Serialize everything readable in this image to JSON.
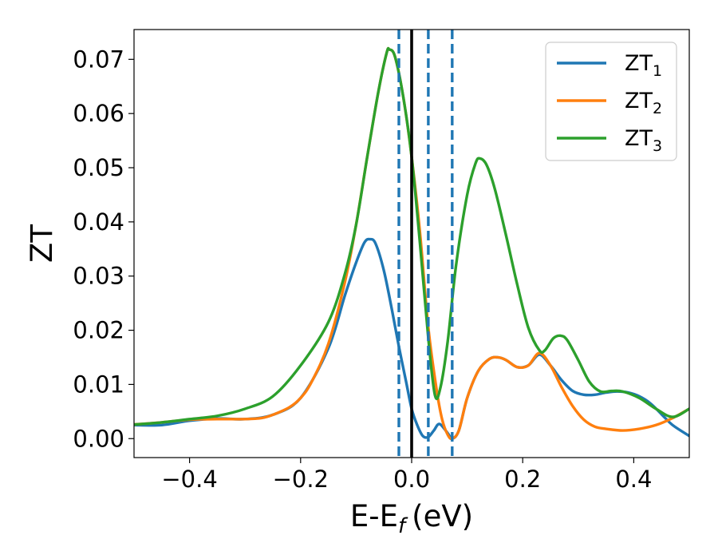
{
  "chart_data": {
    "type": "line",
    "xlabel": "E-E",
    "xlabel_sub": "f",
    "xlabel_unit": "(eV)",
    "ylabel": "ZT",
    "xlim": [
      -0.5,
      0.5
    ],
    "ylim": [
      -0.0035,
      0.0755
    ],
    "xticks": [
      -0.4,
      -0.2,
      0.0,
      0.2,
      0.4
    ],
    "xtick_labels": [
      "−0.4",
      "−0.2",
      "0.0",
      "0.2",
      "0.4"
    ],
    "yticks": [
      0.0,
      0.01,
      0.02,
      0.03,
      0.04,
      0.05,
      0.06,
      0.07
    ],
    "ytick_labels": [
      "0.00",
      "0.01",
      "0.02",
      "0.03",
      "0.04",
      "0.05",
      "0.06",
      "0.07"
    ],
    "grid": false,
    "legend_position": "top-right",
    "vertical_lines": [
      {
        "x": 0.0,
        "style": "solid",
        "color": "#000000"
      },
      {
        "x": -0.023,
        "style": "dashed",
        "color": "#1f77b4"
      },
      {
        "x": 0.03,
        "style": "dashed",
        "color": "#1f77b4"
      },
      {
        "x": 0.073,
        "style": "dashed",
        "color": "#1f77b4"
      }
    ],
    "series": [
      {
        "name": "ZT",
        "name_sub": "1",
        "color": "#1f77b4",
        "points": [
          [
            -0.5,
            0.0025
          ],
          [
            -0.45,
            0.0025
          ],
          [
            -0.4,
            0.0033
          ],
          [
            -0.35,
            0.0037
          ],
          [
            -0.3,
            0.0036
          ],
          [
            -0.25,
            0.0044
          ],
          [
            -0.2,
            0.0075
          ],
          [
            -0.15,
            0.0167
          ],
          [
            -0.12,
            0.0265
          ],
          [
            -0.1,
            0.0325
          ],
          [
            -0.085,
            0.0362
          ],
          [
            -0.075,
            0.0368
          ],
          [
            -0.065,
            0.036
          ],
          [
            -0.05,
            0.031
          ],
          [
            -0.035,
            0.0235
          ],
          [
            -0.023,
            0.017
          ],
          [
            -0.01,
            0.0105
          ],
          [
            0.0,
            0.0055
          ],
          [
            0.01,
            0.0025
          ],
          [
            0.02,
            0.0005
          ],
          [
            0.03,
            0.0003
          ],
          [
            0.04,
            0.0015
          ],
          [
            0.05,
            0.0027
          ],
          [
            0.065,
            0.001
          ],
          [
            0.073,
            0.0
          ],
          [
            0.085,
            0.0015
          ],
          [
            0.1,
            0.0075
          ],
          [
            0.12,
            0.0125
          ],
          [
            0.14,
            0.0147
          ],
          [
            0.155,
            0.015
          ],
          [
            0.17,
            0.0145
          ],
          [
            0.19,
            0.0132
          ],
          [
            0.21,
            0.0135
          ],
          [
            0.23,
            0.0155
          ],
          [
            0.25,
            0.0135
          ],
          [
            0.27,
            0.0108
          ],
          [
            0.29,
            0.0088
          ],
          [
            0.31,
            0.0081
          ],
          [
            0.33,
            0.0081
          ],
          [
            0.35,
            0.0085
          ],
          [
            0.37,
            0.0087
          ],
          [
            0.39,
            0.0085
          ],
          [
            0.41,
            0.0078
          ],
          [
            0.43,
            0.0065
          ],
          [
            0.45,
            0.0045
          ],
          [
            0.47,
            0.0025
          ],
          [
            0.5,
            0.0005
          ]
        ]
      },
      {
        "name": "ZT",
        "name_sub": "2",
        "color": "#ff7f0e",
        "points": [
          [
            -0.5,
            0.0026
          ],
          [
            -0.45,
            0.003
          ],
          [
            -0.4,
            0.0035
          ],
          [
            -0.35,
            0.0036
          ],
          [
            -0.3,
            0.0036
          ],
          [
            -0.27,
            0.0038
          ],
          [
            -0.25,
            0.0044
          ],
          [
            -0.22,
            0.0058
          ],
          [
            -0.2,
            0.0075
          ],
          [
            -0.18,
            0.0105
          ],
          [
            -0.15,
            0.0175
          ],
          [
            -0.12,
            0.029
          ],
          [
            -0.1,
            0.0395
          ],
          [
            -0.08,
            0.052
          ],
          [
            -0.06,
            0.064
          ],
          [
            -0.045,
            0.0712
          ],
          [
            -0.04,
            0.0718
          ],
          [
            -0.03,
            0.0705
          ],
          [
            -0.015,
            0.063
          ],
          [
            0.0,
            0.052
          ],
          [
            0.015,
            0.038
          ],
          [
            0.03,
            0.0205
          ],
          [
            0.045,
            0.009
          ],
          [
            0.055,
            0.0035
          ],
          [
            0.065,
            0.0007
          ],
          [
            0.073,
            0.0
          ],
          [
            0.085,
            0.0015
          ],
          [
            0.1,
            0.0075
          ],
          [
            0.12,
            0.0125
          ],
          [
            0.14,
            0.0147
          ],
          [
            0.155,
            0.015
          ],
          [
            0.17,
            0.0145
          ],
          [
            0.19,
            0.0132
          ],
          [
            0.21,
            0.0135
          ],
          [
            0.23,
            0.0158
          ],
          [
            0.25,
            0.0135
          ],
          [
            0.27,
            0.0095
          ],
          [
            0.29,
            0.006
          ],
          [
            0.31,
            0.0035
          ],
          [
            0.33,
            0.0022
          ],
          [
            0.35,
            0.0018
          ],
          [
            0.38,
            0.0015
          ],
          [
            0.41,
            0.0018
          ],
          [
            0.44,
            0.0025
          ],
          [
            0.47,
            0.0038
          ],
          [
            0.5,
            0.0055
          ]
        ]
      },
      {
        "name": "ZT",
        "name_sub": "3",
        "color": "#2ca02c",
        "points": [
          [
            -0.5,
            0.0026
          ],
          [
            -0.45,
            0.003
          ],
          [
            -0.4,
            0.0036
          ],
          [
            -0.35,
            0.0042
          ],
          [
            -0.3,
            0.0055
          ],
          [
            -0.25,
            0.0078
          ],
          [
            -0.2,
            0.0135
          ],
          [
            -0.15,
            0.0215
          ],
          [
            -0.12,
            0.0305
          ],
          [
            -0.1,
            0.0395
          ],
          [
            -0.08,
            0.052
          ],
          [
            -0.06,
            0.064
          ],
          [
            -0.045,
            0.0712
          ],
          [
            -0.04,
            0.0718
          ],
          [
            -0.03,
            0.0705
          ],
          [
            -0.015,
            0.063
          ],
          [
            0.0,
            0.052
          ],
          [
            0.015,
            0.036
          ],
          [
            0.03,
            0.0185
          ],
          [
            0.042,
            0.008
          ],
          [
            0.052,
            0.0095
          ],
          [
            0.065,
            0.018
          ],
          [
            0.08,
            0.032
          ],
          [
            0.1,
            0.045
          ],
          [
            0.115,
            0.0508
          ],
          [
            0.123,
            0.0517
          ],
          [
            0.135,
            0.0505
          ],
          [
            0.15,
            0.046
          ],
          [
            0.17,
            0.0375
          ],
          [
            0.19,
            0.0285
          ],
          [
            0.21,
            0.0205
          ],
          [
            0.23,
            0.0163
          ],
          [
            0.24,
            0.0163
          ],
          [
            0.255,
            0.0185
          ],
          [
            0.268,
            0.019
          ],
          [
            0.28,
            0.0182
          ],
          [
            0.3,
            0.0145
          ],
          [
            0.32,
            0.0105
          ],
          [
            0.34,
            0.0087
          ],
          [
            0.36,
            0.0088
          ],
          [
            0.38,
            0.0087
          ],
          [
            0.41,
            0.0075
          ],
          [
            0.44,
            0.0055
          ],
          [
            0.47,
            0.004
          ],
          [
            0.5,
            0.0055
          ]
        ]
      }
    ]
  }
}
